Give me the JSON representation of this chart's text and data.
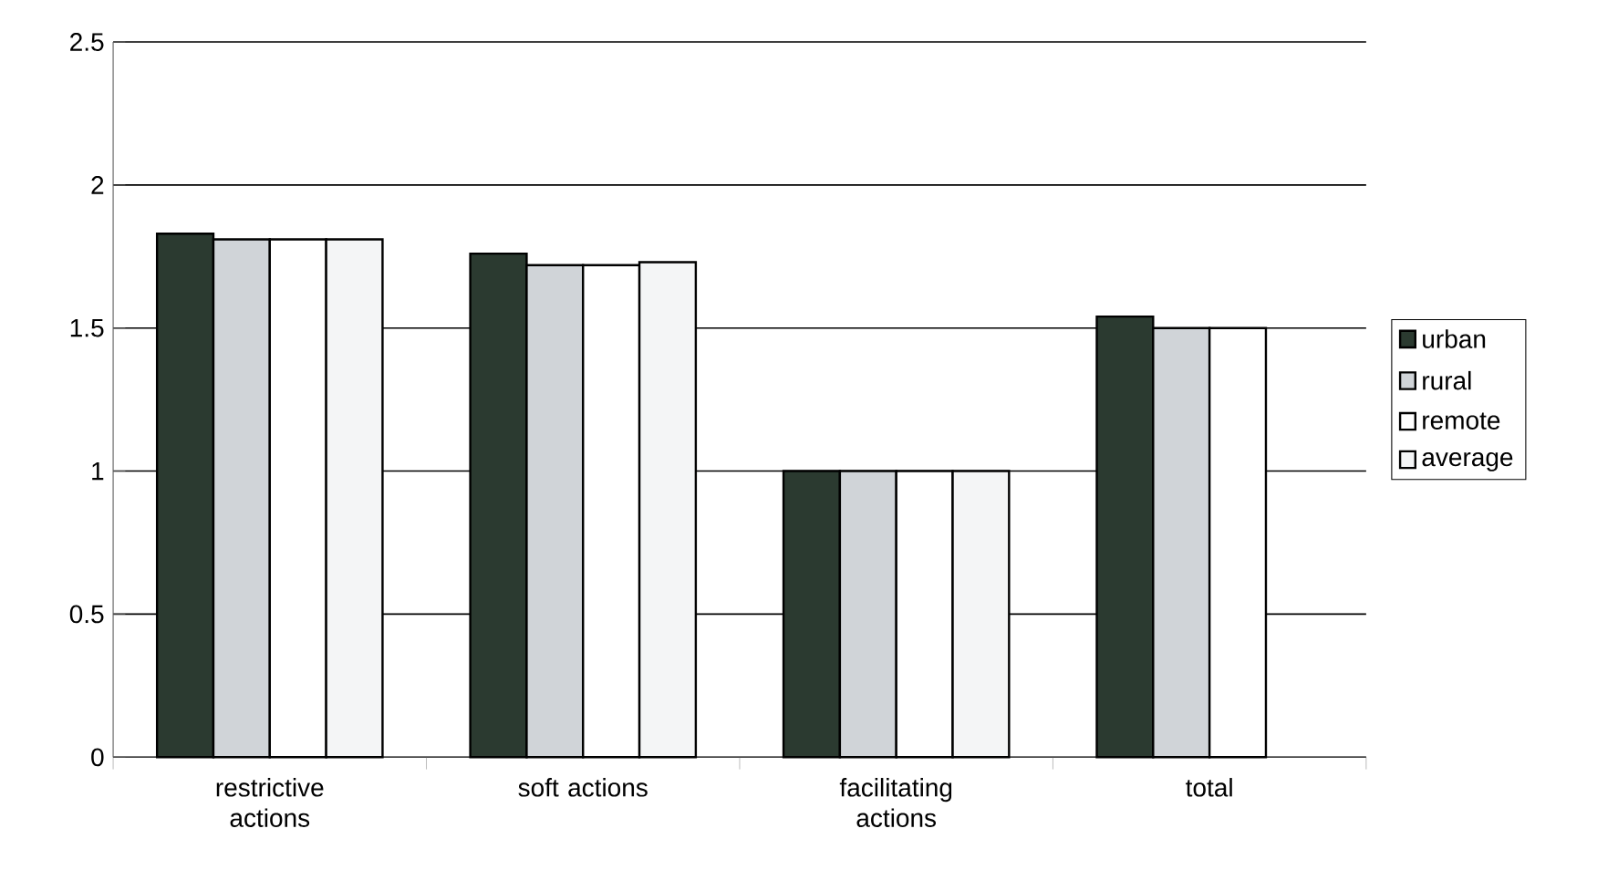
{
  "chart_data": {
    "type": "bar",
    "categories": [
      "restrictive actions",
      "soft actions",
      "facilitating actions",
      "total"
    ],
    "series": [
      {
        "name": "urban",
        "color": "#2b3a30",
        "values": [
          1.83,
          1.76,
          1.0,
          1.54
        ]
      },
      {
        "name": "rural",
        "color": "#d0d4d8",
        "values": [
          1.81,
          1.72,
          1.0,
          1.5
        ]
      },
      {
        "name": "remote",
        "color": "#ffffff",
        "values": [
          1.81,
          1.72,
          1.0,
          1.5
        ]
      },
      {
        "name": "average",
        "color": "#f4f5f6",
        "values": [
          1.81,
          1.73,
          1.0,
          null
        ]
      }
    ],
    "ylim": [
      0,
      2.5
    ],
    "yticks": [
      0,
      0.5,
      1,
      1.5,
      2,
      2.5
    ],
    "grid": "y",
    "legend": "right"
  }
}
